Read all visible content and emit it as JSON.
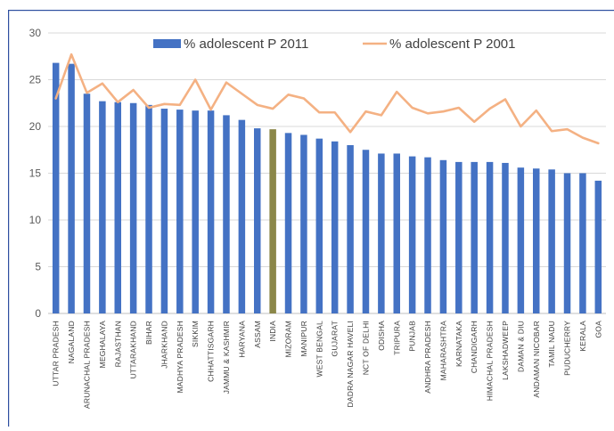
{
  "chart_data": {
    "type": "bar",
    "categories": [
      "UTTAR PRADESH",
      "NAGALAND",
      "ARUNACHAL PRADESH",
      "MEGHALAYA",
      "RAJASTHAN",
      "UTTARAKHAND",
      "BIHAR",
      "JHARKHAND",
      "MADHYA PRADESH",
      "SIKKIM",
      "CHHATTISGARH",
      "JAMMU & KASHMIR",
      "HARYANA",
      "ASSAM",
      "INDIA",
      "MIZORAM",
      "MANIPUR",
      "WEST BENGAL",
      "GUJARAT",
      "DADRA NAGAR HAVELI",
      "NCT OF DELHI",
      "ODISHA",
      "TRIPURA",
      "PUNJAB",
      "ANDHRA PRADESH",
      "MAHARASHTRA",
      "KARNATAKA",
      "CHANDIGARH",
      "HIMACHAL PRADESH",
      "LAKSHADWEEP",
      "DAMAN & DIU",
      "ANDAMAN NICOBAR",
      "TAMIL NADU",
      "PUDUCHERRY",
      "KERALA",
      "GOA"
    ],
    "series": [
      {
        "name": "% adolescent P 2011",
        "kind": "bar",
        "color": "#4472C4",
        "highlight_color": "#8B8748",
        "highlight_category": "INDIA",
        "values": [
          26.8,
          26.7,
          23.5,
          22.7,
          22.6,
          22.5,
          22.3,
          21.9,
          21.8,
          21.7,
          21.7,
          21.2,
          20.7,
          19.8,
          19.7,
          19.3,
          19.1,
          18.7,
          18.4,
          18.0,
          17.5,
          17.1,
          17.1,
          16.8,
          16.7,
          16.4,
          16.2,
          16.2,
          16.2,
          16.1,
          15.6,
          15.5,
          15.4,
          15.0,
          15.0,
          14.2
        ]
      },
      {
        "name": "% adolescent P 2001",
        "kind": "line",
        "color": "#F4B183",
        "values": [
          23.0,
          27.7,
          23.6,
          24.6,
          22.6,
          23.9,
          22.0,
          22.4,
          22.3,
          25.0,
          21.8,
          24.7,
          23.5,
          22.3,
          21.9,
          23.4,
          23.0,
          21.5,
          21.5,
          19.4,
          21.6,
          21.2,
          23.7,
          22.0,
          21.4,
          21.6,
          22.0,
          20.5,
          21.9,
          22.9,
          20.0,
          21.7,
          19.5,
          19.7,
          18.8,
          18.2
        ]
      }
    ],
    "ylim": [
      0,
      30
    ],
    "yticks": [
      "0",
      "5",
      "10",
      "15",
      "20",
      "25",
      "30"
    ],
    "grid": true,
    "legend_position": "top-center",
    "title": "",
    "xlabel": "",
    "ylabel": ""
  }
}
